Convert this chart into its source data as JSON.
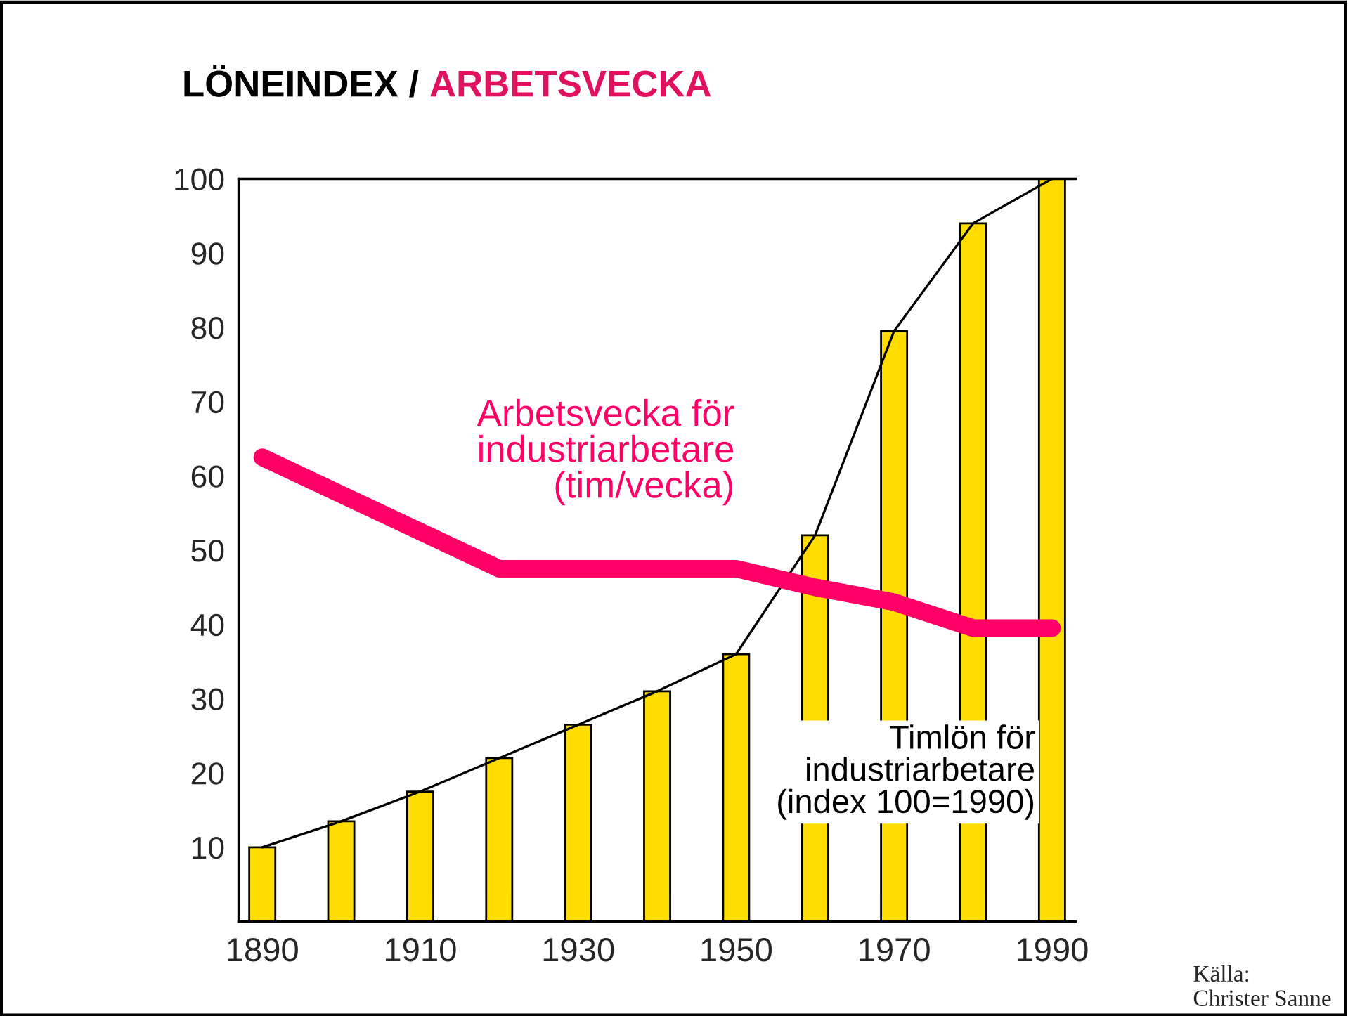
{
  "chart_data": {
    "type": "bar",
    "title": "LÖNEINDEX / ARBETSVECKA",
    "x": [
      1890,
      1900,
      1910,
      1920,
      1930,
      1940,
      1950,
      1960,
      1970,
      1980,
      1990
    ],
    "series": [
      {
        "color": "#ffdd00",
        "values": [
          10,
          13.5,
          17.5,
          22,
          26.5,
          31,
          36,
          52,
          79.5,
          94,
          100
        ]
      },
      {
        "type": "line",
        "color": "#000000",
        "values": [
          10,
          13.5,
          17.5,
          22,
          26.5,
          31,
          36,
          52,
          79.5,
          94,
          100
        ]
      },
      {
        "type": "line",
        "color": "#ff0066",
        "x": [
          1890,
          1920,
          1950,
          1960,
          1970,
          1980,
          1990
        ],
        "values": [
          62.5,
          47.5,
          47.5,
          45,
          43,
          39.5,
          39.5
        ]
      }
    ],
    "xlim": [
      1887,
      1993
    ],
    "xticks": [
      1890,
      1910,
      1930,
      1950,
      1970,
      1990
    ],
    "ylim": [
      0,
      100
    ],
    "yticks": [
      10,
      20,
      30,
      40,
      50,
      60,
      70,
      80,
      90,
      100
    ],
    "grid": false,
    "legend": false,
    "annotations": [
      "Arbetsvecka för\nindustriarbetare\n(tim/vecka)",
      "Timlön för\nindustriarbetare\n(index 100=1990)",
      "Källa:\nChrister Sanne"
    ]
  }
}
